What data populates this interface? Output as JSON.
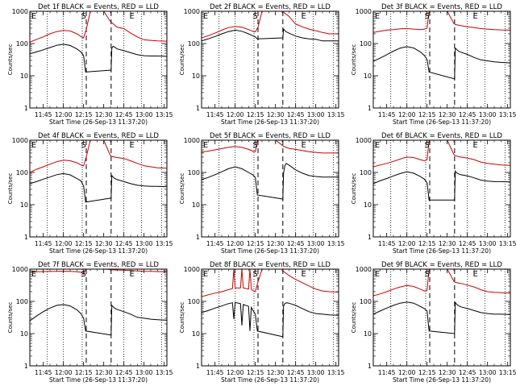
{
  "colors": {
    "events": "#000000",
    "lld": "#cc0000",
    "background": "#ffffff"
  },
  "x_ticks": [
    "11:45",
    "12:00",
    "12:15",
    "12:30",
    "12:45",
    "13:00",
    "13:15"
  ],
  "x_tick_minutes": [
    45,
    60,
    75,
    90,
    105,
    120,
    135
  ],
  "xlim_minutes": [
    35,
    137
  ],
  "y_ticks": [
    "1",
    "10",
    "100",
    "1000"
  ],
  "y_tick_values": [
    1,
    10,
    100,
    1000
  ],
  "ylim": [
    1,
    1000
  ],
  "y_scale": "log",
  "ylabel": "Counts/sec",
  "xlabel": "Start Time (26-Sep-13 11:37:20)",
  "dotted_lines_minutes": [
    48,
    60,
    74,
    105,
    118,
    133
  ],
  "dashed_lines_minutes": [
    77,
    95.5
  ],
  "markers": [
    {
      "text": "E",
      "minute": 38
    },
    {
      "text": "S",
      "minute": 75
    },
    {
      "text": "E",
      "minute": 111
    }
  ],
  "chart_data": [
    {
      "type": "line",
      "title": "Det 1f BLACK = Events, RED = LLD",
      "series": [
        {
          "name": "Events",
          "color": "#000000",
          "x": [
            35,
            40,
            45,
            50,
            55,
            60,
            65,
            70,
            73,
            75,
            76.5,
            95.5,
            96,
            97,
            98,
            100,
            105,
            110,
            115,
            120,
            125,
            130,
            137
          ],
          "y": [
            48,
            55,
            64,
            75,
            88,
            95,
            87,
            68,
            55,
            42,
            13,
            15,
            72,
            82,
            78,
            68,
            60,
            52,
            45,
            42,
            41,
            41,
            40
          ]
        },
        {
          "name": "LLD",
          "color": "#cc0000",
          "x": [
            35,
            40,
            45,
            50,
            55,
            60,
            65,
            70,
            73,
            75,
            77,
            80,
            83,
            85,
            90,
            95,
            100,
            105,
            110,
            115,
            120,
            125,
            130,
            137
          ],
          "y": [
            110,
            135,
            160,
            200,
            235,
            255,
            245,
            200,
            165,
            150,
            270,
            1000,
            1000,
            1000,
            1000,
            480,
            320,
            290,
            210,
            160,
            130,
            125,
            120,
            118
          ]
        }
      ]
    },
    {
      "type": "line",
      "title": "Det 2f BLACK = Events, RED = LLD",
      "series": [
        {
          "name": "Events",
          "color": "#000000",
          "x": [
            35,
            40,
            45,
            50,
            55,
            60,
            65,
            70,
            73,
            75,
            76.5,
            95.5,
            96,
            98,
            100,
            105,
            110,
            115,
            120,
            125,
            130,
            137
          ],
          "y": [
            120,
            140,
            165,
            200,
            235,
            260,
            240,
            200,
            175,
            160,
            140,
            150,
            280,
            230,
            210,
            170,
            150,
            140,
            135,
            120,
            120,
            120
          ]
        },
        {
          "name": "LLD",
          "color": "#cc0000",
          "x": [
            35,
            40,
            45,
            50,
            55,
            60,
            65,
            70,
            73,
            75,
            77,
            80,
            85,
            90,
            95,
            100,
            105,
            110,
            115,
            120,
            125,
            130,
            137
          ],
          "y": [
            150,
            175,
            210,
            260,
            310,
            340,
            320,
            270,
            240,
            230,
            320,
            1000,
            1000,
            1000,
            1000,
            700,
            400,
            330,
            280,
            250,
            220,
            200,
            200
          ]
        }
      ]
    },
    {
      "type": "line",
      "title": "Det 3f BLACK = Events, RED = LLD",
      "series": [
        {
          "name": "Events",
          "color": "#000000",
          "x": [
            35,
            40,
            45,
            50,
            55,
            60,
            65,
            70,
            73,
            75,
            76.5,
            95.5,
            96,
            97,
            98,
            100,
            105,
            110,
            115,
            120,
            125,
            130,
            137
          ],
          "y": [
            28,
            35,
            45,
            58,
            72,
            80,
            73,
            55,
            43,
            32,
            13,
            8,
            72,
            66,
            60,
            54,
            46,
            37,
            31,
            29,
            27,
            26,
            25
          ]
        },
        {
          "name": "LLD",
          "color": "#cc0000",
          "x": [
            35,
            40,
            45,
            50,
            55,
            60,
            65,
            70,
            73,
            75,
            76.5,
            80,
            85,
            90,
            95,
            96,
            100,
            105,
            110,
            115,
            120,
            125,
            130,
            137
          ],
          "y": [
            220,
            240,
            260,
            270,
            285,
            290,
            280,
            270,
            280,
            300,
            1000,
            1000,
            1000,
            1000,
            420,
            390,
            360,
            330,
            310,
            290,
            280,
            270,
            265,
            260
          ]
        }
      ]
    },
    {
      "type": "line",
      "title": "Det 4f BLACK = Events, RED = LLD",
      "series": [
        {
          "name": "Events",
          "color": "#000000",
          "x": [
            35,
            40,
            45,
            50,
            55,
            60,
            65,
            70,
            73,
            75,
            76.5,
            95.5,
            96,
            97,
            98,
            100,
            105,
            110,
            115,
            120,
            125,
            130,
            137
          ],
          "y": [
            45,
            52,
            62,
            72,
            85,
            92,
            84,
            65,
            55,
            38,
            12,
            16,
            80,
            72,
            66,
            60,
            52,
            45,
            40,
            38,
            37,
            37,
            36
          ]
        },
        {
          "name": "LLD",
          "color": "#cc0000",
          "x": [
            35,
            40,
            45,
            50,
            55,
            60,
            65,
            70,
            73,
            75,
            77,
            80,
            85,
            90,
            95,
            96,
            100,
            105,
            110,
            115,
            120,
            125,
            130,
            137
          ],
          "y": [
            100,
            125,
            150,
            180,
            215,
            240,
            230,
            200,
            170,
            160,
            300,
            1000,
            1000,
            1000,
            330,
            310,
            290,
            270,
            230,
            190,
            160,
            150,
            140,
            135
          ]
        }
      ]
    },
    {
      "type": "line",
      "title": "Det 5f BLACK = Events, RED = LLD",
      "series": [
        {
          "name": "Events",
          "color": "#000000",
          "x": [
            35,
            40,
            45,
            50,
            55,
            60,
            65,
            70,
            73,
            75,
            76.5,
            95.5,
            96,
            97,
            98,
            100,
            105,
            110,
            115,
            120,
            125,
            130,
            137
          ],
          "y": [
            60,
            70,
            85,
            105,
            130,
            150,
            130,
            100,
            85,
            70,
            20,
            15,
            95,
            160,
            190,
            170,
            120,
            95,
            80,
            75,
            72,
            72,
            72
          ]
        },
        {
          "name": "LLD",
          "color": "#cc0000",
          "x": [
            35,
            40,
            45,
            50,
            55,
            60,
            65,
            70,
            73,
            75,
            76.5,
            80,
            85,
            90,
            95,
            96,
            100,
            105,
            110,
            115,
            120,
            125,
            130,
            137
          ],
          "y": [
            430,
            460,
            500,
            550,
            600,
            640,
            600,
            520,
            460,
            440,
            1000,
            1000,
            1000,
            1000,
            700,
            650,
            560,
            520,
            480,
            440,
            420,
            400,
            400,
            400
          ]
        }
      ]
    },
    {
      "type": "line",
      "title": "Det 6f BLACK = Events, RED = LLD",
      "series": [
        {
          "name": "Events",
          "color": "#000000",
          "x": [
            35,
            40,
            45,
            50,
            55,
            60,
            65,
            70,
            73,
            75,
            76.5,
            95.5,
            96,
            97,
            98,
            100,
            105,
            110,
            115,
            120,
            125,
            130,
            137
          ],
          "y": [
            45,
            55,
            65,
            78,
            92,
            105,
            95,
            75,
            62,
            48,
            14,
            14,
            110,
            98,
            92,
            85,
            78,
            68,
            58,
            54,
            52,
            52,
            51
          ]
        },
        {
          "name": "LLD",
          "color": "#cc0000",
          "x": [
            35,
            40,
            45,
            50,
            55,
            60,
            65,
            70,
            73,
            75,
            76.5,
            80,
            85,
            90,
            95,
            96,
            100,
            105,
            110,
            115,
            120,
            125,
            130,
            137
          ],
          "y": [
            150,
            170,
            190,
            220,
            260,
            300,
            290,
            250,
            230,
            250,
            1000,
            1000,
            1000,
            1000,
            360,
            330,
            300,
            280,
            250,
            210,
            190,
            180,
            170,
            165
          ]
        }
      ]
    },
    {
      "type": "line",
      "title": "Det 7f BLACK = Events, RED = LLD",
      "series": [
        {
          "name": "Events",
          "color": "#000000",
          "x": [
            35,
            40,
            45,
            50,
            55,
            60,
            65,
            70,
            73,
            75,
            76.5,
            95.5,
            96,
            97,
            98,
            100,
            105,
            110,
            115,
            120,
            125,
            130,
            137
          ],
          "y": [
            25,
            35,
            48,
            62,
            75,
            80,
            72,
            55,
            42,
            30,
            12,
            9,
            75,
            68,
            62,
            56,
            48,
            40,
            32,
            30,
            28,
            27,
            26
          ]
        },
        {
          "name": "LLD",
          "color": "#cc0000",
          "x": [
            35,
            40,
            45,
            50,
            55,
            60,
            65,
            70,
            73,
            75,
            76.5,
            80,
            85,
            90,
            95,
            96,
            100,
            105,
            110,
            115,
            120,
            125,
            130,
            137
          ],
          "y": [
            820,
            830,
            840,
            845,
            850,
            860,
            850,
            830,
            810,
            700,
            1000,
            1000,
            1000,
            1000,
            980,
            960,
            940,
            920,
            900,
            880,
            860,
            850,
            840,
            830
          ]
        }
      ]
    },
    {
      "type": "line",
      "title": "Det 8f BLACK = Events, RED = LLD",
      "series": [
        {
          "name": "Events",
          "color": "#000000",
          "x": [
            35,
            40,
            45,
            50,
            55,
            58,
            59,
            60,
            64,
            65,
            66,
            70,
            71,
            72,
            73,
            75,
            76.5,
            95.5,
            96,
            97,
            98,
            100,
            105,
            110,
            115,
            120,
            125,
            130,
            137
          ],
          "y": [
            45,
            52,
            62,
            72,
            85,
            90,
            28,
            92,
            85,
            18,
            80,
            70,
            12,
            65,
            55,
            40,
            12,
            8,
            72,
            85,
            90,
            88,
            75,
            60,
            48,
            42,
            40,
            38,
            37
          ]
        },
        {
          "name": "LLD",
          "color": "#cc0000",
          "x": [
            35,
            40,
            45,
            50,
            55,
            58,
            59,
            60,
            64,
            65,
            66,
            70,
            71,
            72,
            73,
            75,
            77,
            80,
            85,
            90,
            95,
            96,
            100,
            105,
            110,
            115,
            120,
            125,
            130,
            137
          ],
          "y": [
            140,
            160,
            180,
            200,
            230,
            250,
            1000,
            260,
            260,
            1000,
            260,
            240,
            1000,
            240,
            220,
            200,
            400,
            1000,
            1000,
            1000,
            1000,
            850,
            640,
            480,
            380,
            300,
            240,
            210,
            200,
            195
          ]
        }
      ]
    },
    {
      "type": "line",
      "title": "Det 9f BLACK = Events, RED = LLD",
      "series": [
        {
          "name": "Events",
          "color": "#000000",
          "x": [
            35,
            40,
            45,
            50,
            55,
            60,
            65,
            70,
            73,
            75,
            76.5,
            95.5,
            96,
            97,
            98,
            100,
            105,
            110,
            115,
            120,
            125,
            130,
            137
          ],
          "y": [
            40,
            50,
            62,
            75,
            88,
            95,
            88,
            70,
            60,
            50,
            12,
            10,
            92,
            82,
            75,
            68,
            60,
            52,
            45,
            42,
            40,
            40,
            39
          ]
        },
        {
          "name": "LLD",
          "color": "#cc0000",
          "x": [
            35,
            40,
            45,
            50,
            55,
            60,
            65,
            70,
            73,
            75,
            76.5,
            80,
            85,
            90,
            95,
            96,
            100,
            105,
            110,
            115,
            120,
            125,
            130,
            137
          ],
          "y": [
            150,
            170,
            200,
            240,
            280,
            310,
            290,
            240,
            210,
            220,
            1000,
            1000,
            1000,
            1000,
            420,
            390,
            360,
            320,
            280,
            230,
            200,
            190,
            185,
            180
          ]
        }
      ]
    }
  ]
}
